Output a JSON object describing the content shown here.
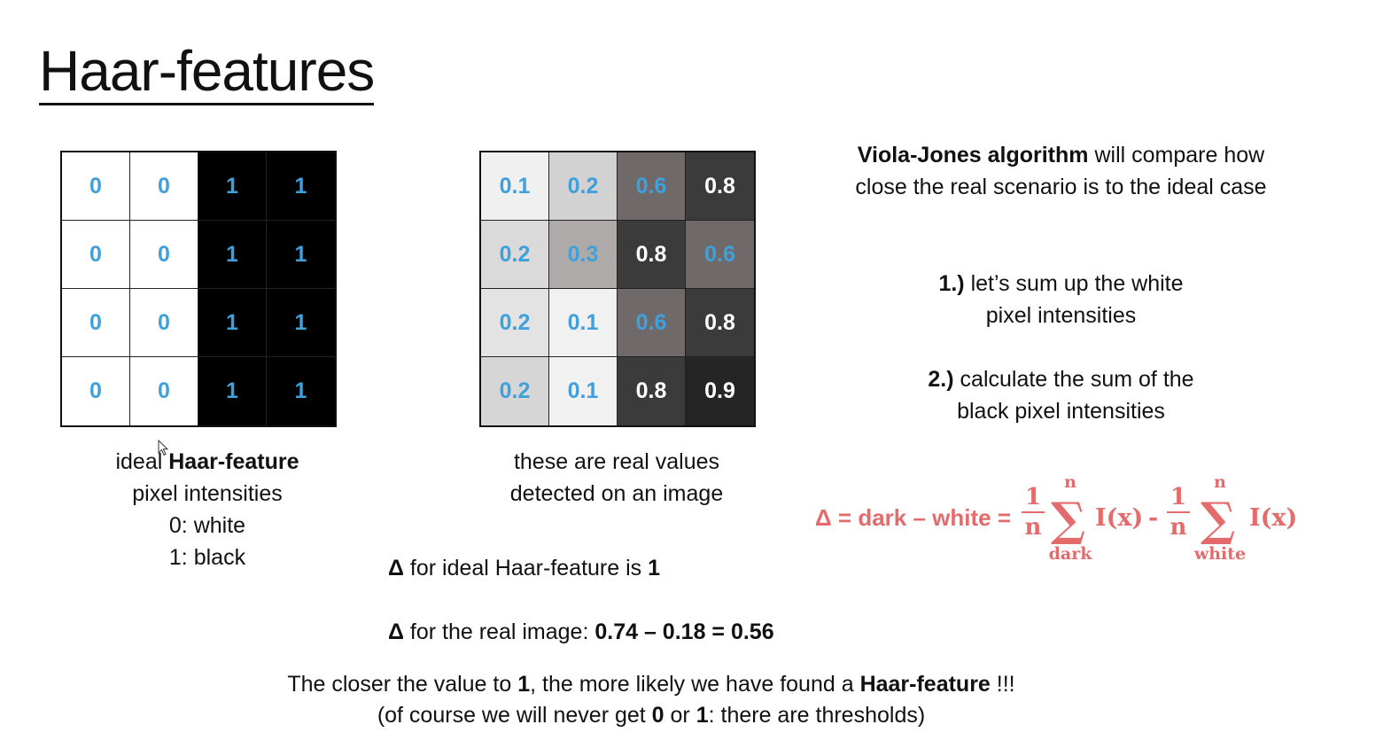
{
  "title": "Haar-features",
  "colors": {
    "value_text": "#3fa0dc",
    "formula": "#e36b6b"
  },
  "ideal_grid": {
    "values": [
      [
        "0",
        "0",
        "1",
        "1"
      ],
      [
        "0",
        "0",
        "1",
        "1"
      ],
      [
        "0",
        "0",
        "1",
        "1"
      ],
      [
        "0",
        "0",
        "1",
        "1"
      ]
    ],
    "shades": [
      [
        "#ffffff",
        "#ffffff",
        "#000000",
        "#000000"
      ],
      [
        "#ffffff",
        "#ffffff",
        "#000000",
        "#000000"
      ],
      [
        "#ffffff",
        "#ffffff",
        "#000000",
        "#000000"
      ],
      [
        "#ffffff",
        "#ffffff",
        "#000000",
        "#000000"
      ]
    ]
  },
  "real_grid": {
    "values": [
      [
        "0.1",
        "0.2",
        "0.6",
        "0.8"
      ],
      [
        "0.2",
        "0.3",
        "0.8",
        "0.6"
      ],
      [
        "0.2",
        "0.1",
        "0.6",
        "0.8"
      ],
      [
        "0.2",
        "0.1",
        "0.8",
        "0.9"
      ]
    ],
    "shades": [
      [
        "#f0f0f0",
        "#d2d2d2",
        "#6f6a69",
        "#3b3b3b"
      ],
      [
        "#dadada",
        "#aeaaa9",
        "#3b3b3b",
        "#6f6a69"
      ],
      [
        "#e3e3e3",
        "#f1f1f1",
        "#6f6a69",
        "#3b3b3b"
      ],
      [
        "#d6d6d6",
        "#f1f1f1",
        "#3b3b3b",
        "#252525"
      ]
    ],
    "text_colors": [
      [
        "#3fa0dc",
        "#3fa0dc",
        "#3fa0dc",
        "#ffffff"
      ],
      [
        "#3fa0dc",
        "#3fa0dc",
        "#ffffff",
        "#3fa0dc"
      ],
      [
        "#3fa0dc",
        "#3fa0dc",
        "#3fa0dc",
        "#ffffff"
      ],
      [
        "#3fa0dc",
        "#3fa0dc",
        "#ffffff",
        "#ffffff"
      ]
    ]
  },
  "captions": {
    "ideal": {
      "prefix": "ideal ",
      "bold": "Haar-feature",
      "line2": "pixel intensities",
      "line3": "0: white",
      "line4": "1: black"
    },
    "real": {
      "line1": "these are real values",
      "line2": "detected on an image"
    }
  },
  "description": {
    "bold": "Viola-Jones algorithm",
    "rest": " will compare how close the real scenario is to the ideal case"
  },
  "steps": [
    {
      "num": "1.)",
      "line1": " let’s sum up the white",
      "line2": "pixel intensities"
    },
    {
      "num": "2.)",
      "line1": " calculate the sum of the",
      "line2": "black pixel intensities"
    }
  ],
  "formula": {
    "lhs": "Δ = dark – white =",
    "frac_num": "1",
    "frac_den": "n",
    "sum_symbol": "∑",
    "upper": "n",
    "term": "I(x)",
    "minus": "-",
    "lower_dark": "dark",
    "lower_white": "white"
  },
  "delta_ideal": {
    "prefix": "Δ",
    "text": " for ideal Haar-feature is ",
    "value": "1"
  },
  "delta_real": {
    "prefix": "Δ",
    "text": " for the real image: ",
    "value": "0.74 – 0.18 = 0.56"
  },
  "conclusion": {
    "l1_a": "The closer the value to ",
    "l1_b": "1",
    "l1_c": ", the more likely we have found a ",
    "l1_d": "Haar-feature",
    "l1_e": " !!!",
    "l2_a": "(of course we will never get ",
    "l2_b": "0",
    "l2_c": " or ",
    "l2_d": "1",
    "l2_e": ": there are thresholds)"
  }
}
